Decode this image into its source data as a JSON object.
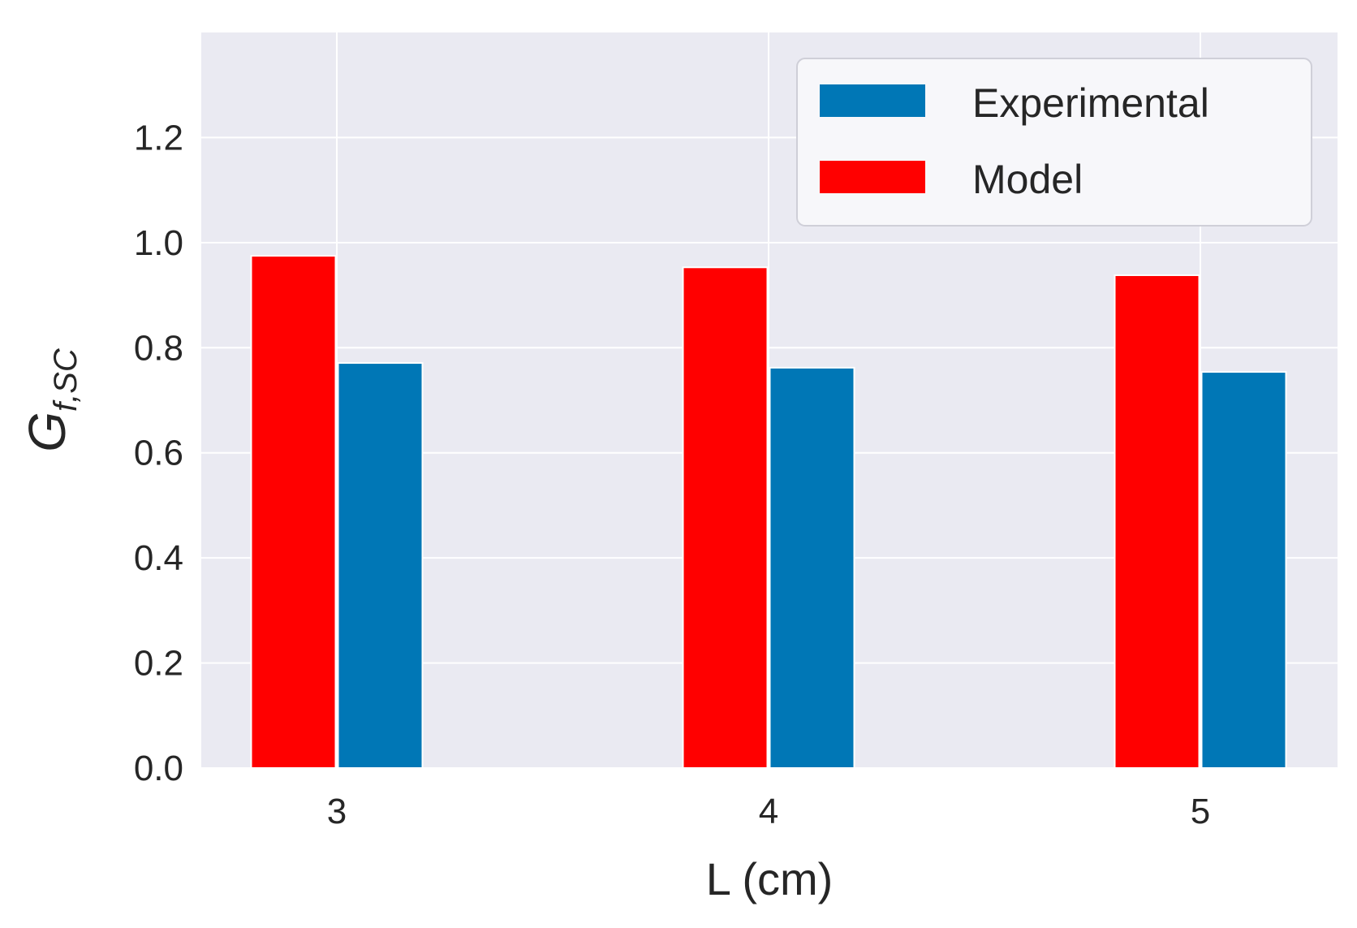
{
  "chart_data": {
    "type": "bar",
    "title": "",
    "xlabel": "L (cm)",
    "ylabel": {
      "base": "G",
      "subscript": "f,SC"
    },
    "categories": [
      "3",
      "4",
      "5"
    ],
    "ylim": [
      0,
      1.4
    ],
    "yticks": [
      "0.0",
      "0.2",
      "0.4",
      "0.6",
      "0.8",
      "1.0",
      "1.2"
    ],
    "grid": true,
    "legend_position": "top-right",
    "series": [
      {
        "name": "Model",
        "color": "#ff0000",
        "values": [
          0.975,
          0.953,
          0.938
        ]
      },
      {
        "name": "Experimental",
        "color": "#0077b6",
        "values": [
          0.771,
          0.762,
          0.754
        ]
      }
    ],
    "legend_order": [
      "Experimental",
      "Model"
    ]
  },
  "colors": {
    "plot_background": "#eaeaf2",
    "grid": "#ffffff"
  }
}
